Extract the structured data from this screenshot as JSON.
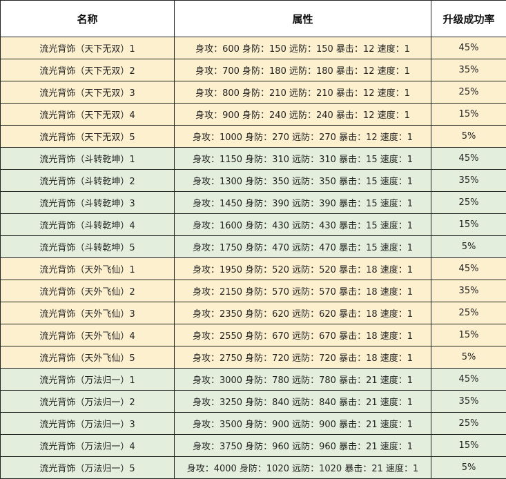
{
  "headers": [
    "名称",
    "属性",
    "升级成功率"
  ],
  "colors": {
    "yellow_group": "#fdf0cf",
    "green_group": "#e3efdc",
    "border": "#222222"
  },
  "rows": [
    {
      "name": "流光背饰（天下无双）1",
      "attr": "身攻：600 身防：150 远防：150  暴击：12 速度：1",
      "rate": "45%",
      "group": "y"
    },
    {
      "name": "流光背饰（天下无双）2",
      "attr": "身攻：700 身防：180 远防：180  暴击：12 速度：1",
      "rate": "35%",
      "group": "y"
    },
    {
      "name": "流光背饰（天下无双）3",
      "attr": "身攻：800 身防：210 远防：210  暴击：12 速度：1",
      "rate": "25%",
      "group": "y"
    },
    {
      "name": "流光背饰（天下无双）4",
      "attr": "身攻：900 身防：240 远防：240  暴击：12 速度：1",
      "rate": "15%",
      "group": "y"
    },
    {
      "name": "流光背饰（天下无双）5",
      "attr": "身攻：1000 身防：270 远防：270  暴击：12 速度：1",
      "rate": "5%",
      "group": "y"
    },
    {
      "name": "流光背饰（斗转乾坤）1",
      "attr": "身攻：1150 身防：310 远防：310  暴击：15 速度：1",
      "rate": "45%",
      "group": "g"
    },
    {
      "name": "流光背饰（斗转乾坤）2",
      "attr": "身攻：1300 身防：350 远防：350  暴击：15 速度：1",
      "rate": "35%",
      "group": "g"
    },
    {
      "name": "流光背饰（斗转乾坤）3",
      "attr": "身攻：1450 身防：390 远防：390  暴击：15 速度：1",
      "rate": "25%",
      "group": "g"
    },
    {
      "name": "流光背饰（斗转乾坤）4",
      "attr": "身攻：1600 身防：430 远防：430  暴击：15 速度：1",
      "rate": "15%",
      "group": "g"
    },
    {
      "name": "流光背饰（斗转乾坤）5",
      "attr": "身攻：1750 身防：470 远防：470  暴击：15 速度：1",
      "rate": "5%",
      "group": "g"
    },
    {
      "name": "流光背饰（天外飞仙）1",
      "attr": "身攻：1950 身防：520 远防：520  暴击：18 速度：1",
      "rate": "45%",
      "group": "y"
    },
    {
      "name": "流光背饰（天外飞仙）2",
      "attr": "身攻：2150 身防：570 远防：570  暴击：18 速度：1",
      "rate": "35%",
      "group": "y"
    },
    {
      "name": "流光背饰（天外飞仙）3",
      "attr": "身攻：2350 身防：620 远防：620  暴击：18 速度：1",
      "rate": "25%",
      "group": "y"
    },
    {
      "name": "流光背饰（天外飞仙）4",
      "attr": "身攻：2550 身防：670 远防：670  暴击：18 速度：1",
      "rate": "15%",
      "group": "y"
    },
    {
      "name": "流光背饰（天外飞仙）5",
      "attr": "身攻：2750 身防：720 远防：720  暴击：18 速度：1",
      "rate": "5%",
      "group": "y"
    },
    {
      "name": "流光背饰（万法归一）1",
      "attr": "身攻：3000 身防：780 远防：780  暴击：21 速度：1",
      "rate": "45%",
      "group": "g"
    },
    {
      "name": "流光背饰（万法归一）2",
      "attr": "身攻：3250 身防：840 远防：840  暴击：21 速度：1",
      "rate": "35%",
      "group": "g"
    },
    {
      "name": "流光背饰（万法归一）3",
      "attr": "身攻：3500 身防：900 远防：900  暴击：21 速度：1",
      "rate": "25%",
      "group": "g"
    },
    {
      "name": "流光背饰（万法归一）4",
      "attr": "身攻：3750 身防：960 远防：960  暴击：21 速度：1",
      "rate": "15%",
      "group": "g"
    },
    {
      "name": "流光背饰（万法归一）5",
      "attr": "身攻：4000 身防：1020 远防：1020 暴击：21 速度：1",
      "rate": "5%",
      "group": "g"
    }
  ]
}
